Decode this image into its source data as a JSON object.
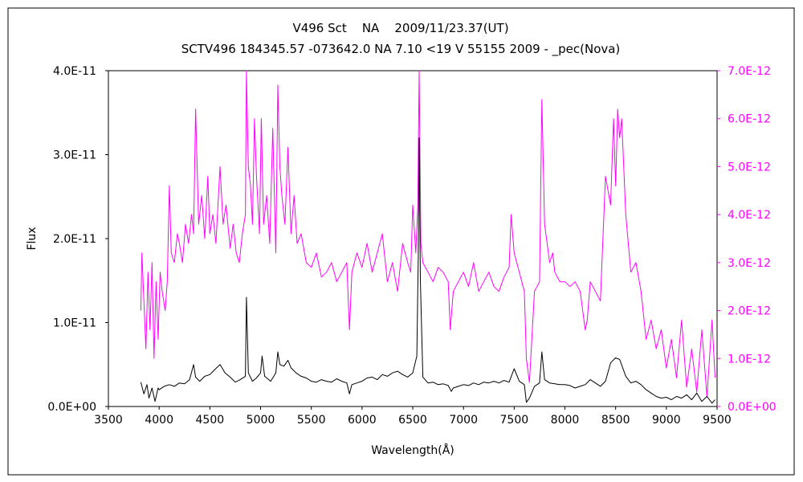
{
  "chart_data": {
    "type": "line",
    "title": "V496 Sct    NA    2009/11/23.37(UT)",
    "subtitle": "SCTV496 184345.57 -073642.0 NA 7.10 <19 V 55155 2009 - _pec(Nova)",
    "xlabel": "Wavelength(Å)",
    "ylabel": "Flux",
    "xlim": [
      3500,
      9500
    ],
    "ylim_left": [
      0,
      4e-11
    ],
    "ylim_right": [
      0,
      7e-12
    ],
    "x_ticks": [
      3500,
      4000,
      4500,
      5000,
      5500,
      6000,
      6500,
      7000,
      7500,
      8000,
      8500,
      9000,
      9500
    ],
    "x_tick_labels": [
      "3500",
      "4000",
      "4500",
      "5000",
      "5500",
      "6000",
      "6500",
      "7000",
      "7500",
      "8000",
      "8500",
      "9000",
      "9500"
    ],
    "y_left_tick_labels": [
      "0.0E+00",
      "1.0E-11",
      "2.0E-11",
      "3.0E-11",
      "4.0E-11"
    ],
    "y_right_tick_labels": [
      "0.0E+00",
      "1.0E-12",
      "2.0E-12",
      "3.0E-12",
      "4.0E-12",
      "5.0E-12",
      "6.0E-12",
      "7.0E-12"
    ],
    "grid": false,
    "series": [
      {
        "axis": "left",
        "color": "#000000",
        "x": [
          3820,
          3850,
          3880,
          3900,
          3930,
          3960,
          3990,
          4000,
          4050,
          4100,
          4150,
          4200,
          4250,
          4300,
          4340,
          4360,
          4400,
          4450,
          4500,
          4550,
          4600,
          4650,
          4700,
          4750,
          4800,
          4850,
          4861,
          4880,
          4920,
          4960,
          5000,
          5015,
          5040,
          5100,
          5150,
          5170,
          5190,
          5230,
          5270,
          5300,
          5350,
          5400,
          5450,
          5500,
          5550,
          5600,
          5650,
          5700,
          5750,
          5800,
          5850,
          5876,
          5900,
          5950,
          6000,
          6050,
          6100,
          6150,
          6200,
          6250,
          6300,
          6350,
          6400,
          6450,
          6500,
          6540,
          6555,
          6563,
          6575,
          6600,
          6650,
          6700,
          6750,
          6800,
          6850,
          6880,
          6900,
          6950,
          7000,
          7050,
          7100,
          7150,
          7200,
          7250,
          7300,
          7350,
          7400,
          7450,
          7500,
          7550,
          7600,
          7620,
          7650,
          7700,
          7750,
          7773,
          7800,
          7850,
          7900,
          7950,
          8000,
          8050,
          8100,
          8150,
          8200,
          8250,
          8300,
          8350,
          8400,
          8450,
          8500,
          8540,
          8600,
          8650,
          8700,
          8750,
          8800,
          8850,
          8900,
          8950,
          9000,
          9050,
          9100,
          9150,
          9200,
          9250,
          9300,
          9350,
          9400,
          9450,
          9480
        ],
        "y": [
          2.9e-12,
          1.5e-12,
          2.6e-12,
          1e-12,
          2.2e-12,
          6e-13,
          2.2e-12,
          2e-12,
          2.4e-12,
          2.6e-12,
          2.4e-12,
          2.8e-12,
          2.7e-12,
          3.2e-12,
          5e-12,
          3.5e-12,
          3e-12,
          3.6e-12,
          3.8e-12,
          4.4e-12,
          5e-12,
          4e-12,
          3.5e-12,
          2.9e-12,
          3.2e-12,
          3.6e-12,
          1.3e-11,
          4e-12,
          3e-12,
          3.4e-12,
          4e-12,
          6e-12,
          3.6e-12,
          3e-12,
          4e-12,
          6.5e-12,
          5e-12,
          4.8e-12,
          5.5e-12,
          4.6e-12,
          4e-12,
          3.6e-12,
          3.4e-12,
          3e-12,
          2.9e-12,
          3.2e-12,
          3e-12,
          2.9e-12,
          3.3e-12,
          3e-12,
          2.8e-12,
          1.5e-12,
          2.6e-12,
          2.8e-12,
          3e-12,
          3.4e-12,
          3.5e-12,
          3.2e-12,
          3.8e-12,
          3.6e-12,
          4e-12,
          4.2e-12,
          3.8e-12,
          3.5e-12,
          4e-12,
          6e-12,
          1.8e-11,
          3.2e-11,
          1.5e-11,
          3.5e-12,
          2.8e-12,
          2.9e-12,
          2.6e-12,
          2.7e-12,
          2.5e-12,
          1.8e-12,
          2.2e-12,
          2.4e-12,
          2.6e-12,
          2.5e-12,
          2.8e-12,
          2.6e-12,
          2.9e-12,
          2.8e-12,
          3e-12,
          2.8e-12,
          3.1e-12,
          2.9e-12,
          4.5e-12,
          3e-12,
          2.6e-12,
          5e-13,
          1e-12,
          2.4e-12,
          2.8e-12,
          6.5e-12,
          3.2e-12,
          2.8e-12,
          2.7e-12,
          2.6e-12,
          2.6e-12,
          2.5e-12,
          2.2e-12,
          2.4e-12,
          2.6e-12,
          3.2e-12,
          2.8e-12,
          2.4e-12,
          3e-12,
          5.2e-12,
          5.8e-12,
          5.6e-12,
          3.6e-12,
          2.8e-12,
          3e-12,
          2.6e-12,
          2e-12,
          1.6e-12,
          1.2e-12,
          1e-12,
          1.1e-12,
          8e-13,
          1.2e-12,
          1e-12,
          1.4e-12,
          8e-13,
          1.6e-12,
          6e-13,
          1.2e-12,
          4e-13,
          8e-13
        ]
      },
      {
        "axis": "right",
        "color": "#ff00ff",
        "x": [
          3820,
          3830,
          3850,
          3870,
          3890,
          3910,
          3930,
          3950,
          3970,
          3990,
          4010,
          4030,
          4060,
          4080,
          4101,
          4120,
          4150,
          4180,
          4200,
          4230,
          4260,
          4290,
          4320,
          4340,
          4360,
          4390,
          4420,
          4450,
          4480,
          4500,
          4530,
          4560,
          4600,
          4630,
          4660,
          4700,
          4730,
          4760,
          4790,
          4820,
          4850,
          4861,
          4880,
          4900,
          4920,
          4940,
          4960,
          4990,
          5007,
          5030,
          5060,
          5090,
          5120,
          5150,
          5170,
          5190,
          5210,
          5240,
          5270,
          5300,
          5330,
          5360,
          5400,
          5450,
          5500,
          5550,
          5600,
          5650,
          5700,
          5750,
          5800,
          5850,
          5876,
          5900,
          5950,
          6000,
          6050,
          6100,
          6150,
          6200,
          6250,
          6300,
          6350,
          6400,
          6450,
          6480,
          6500,
          6530,
          6550,
          6563,
          6580,
          6600,
          6650,
          6700,
          6750,
          6800,
          6850,
          6870,
          6900,
          6950,
          7000,
          7050,
          7100,
          7150,
          7200,
          7250,
          7300,
          7350,
          7400,
          7450,
          7470,
          7500,
          7550,
          7600,
          7620,
          7650,
          7700,
          7750,
          7773,
          7800,
          7850,
          7880,
          7900,
          7950,
          8000,
          8050,
          8100,
          8150,
          8200,
          8220,
          8250,
          8300,
          8350,
          8400,
          8450,
          8480,
          8500,
          8520,
          8540,
          8560,
          8600,
          8650,
          8700,
          8750,
          8800,
          8850,
          8900,
          8950,
          9000,
          9050,
          9100,
          9150,
          9200,
          9250,
          9300,
          9350,
          9400,
          9450,
          9480
        ],
        "y": [
          2e-12,
          3.2e-12,
          2.2e-12,
          1.2e-12,
          2.8e-12,
          1.6e-12,
          3e-12,
          1e-12,
          2.6e-12,
          1.4e-12,
          2.8e-12,
          2.4e-12,
          2e-12,
          2.6e-12,
          4.6e-12,
          3.2e-12,
          3e-12,
          3.6e-12,
          3.4e-12,
          3e-12,
          3.8e-12,
          3.4e-12,
          4e-12,
          3.6e-12,
          6.2e-12,
          3.8e-12,
          4.4e-12,
          3.5e-12,
          4.8e-12,
          3.6e-12,
          4e-12,
          3.4e-12,
          5e-12,
          3.8e-12,
          4.2e-12,
          3.3e-12,
          3.8e-12,
          3.2e-12,
          3e-12,
          3.6e-12,
          4e-12,
          7e-12,
          5e-12,
          4.6e-12,
          3.8e-12,
          6e-12,
          4.8e-12,
          3.6e-12,
          6e-12,
          3.8e-12,
          4.4e-12,
          3.4e-12,
          5.8e-12,
          3.2e-12,
          6.7e-12,
          5e-12,
          4.4e-12,
          3.8e-12,
          5.4e-12,
          3.6e-12,
          4.4e-12,
          3.4e-12,
          3.6e-12,
          3e-12,
          2.9e-12,
          3.2e-12,
          2.7e-12,
          2.8e-12,
          3e-12,
          2.6e-12,
          2.8e-12,
          3e-12,
          1.6e-12,
          2.8e-12,
          3.2e-12,
          2.9e-12,
          3.4e-12,
          2.8e-12,
          3.2e-12,
          3.6e-12,
          2.6e-12,
          3e-12,
          2.4e-12,
          3.4e-12,
          3e-12,
          2.8e-12,
          4.2e-12,
          3.2e-12,
          4.2e-12,
          7e-12,
          3.4e-12,
          3e-12,
          2.8e-12,
          2.6e-12,
          2.9e-12,
          2.8e-12,
          2.6e-12,
          1.6e-12,
          2.4e-12,
          2.6e-12,
          2.8e-12,
          2.5e-12,
          3e-12,
          2.4e-12,
          2.6e-12,
          2.8e-12,
          2.5e-12,
          2.4e-12,
          2.7e-12,
          2.9e-12,
          4e-12,
          3.2e-12,
          2.8e-12,
          2.4e-12,
          1e-12,
          5e-13,
          2.4e-12,
          2.6e-12,
          6.4e-12,
          3.8e-12,
          3e-12,
          3.2e-12,
          2.8e-12,
          2.6e-12,
          2.6e-12,
          2.5e-12,
          2.6e-12,
          2.4e-12,
          1.6e-12,
          1.8e-12,
          2.6e-12,
          2.4e-12,
          2.2e-12,
          4.8e-12,
          4.2e-12,
          6e-12,
          4.6e-12,
          6.2e-12,
          5.6e-12,
          6e-12,
          4e-12,
          2.8e-12,
          3e-12,
          2.4e-12,
          1.4e-12,
          1.8e-12,
          1.2e-12,
          1.6e-12,
          8e-13,
          1.4e-12,
          6e-13,
          1.8e-12,
          4e-13,
          1.2e-12,
          3e-13,
          1.6e-12,
          2e-13,
          1.8e-12,
          6e-13
        ]
      }
    ]
  }
}
